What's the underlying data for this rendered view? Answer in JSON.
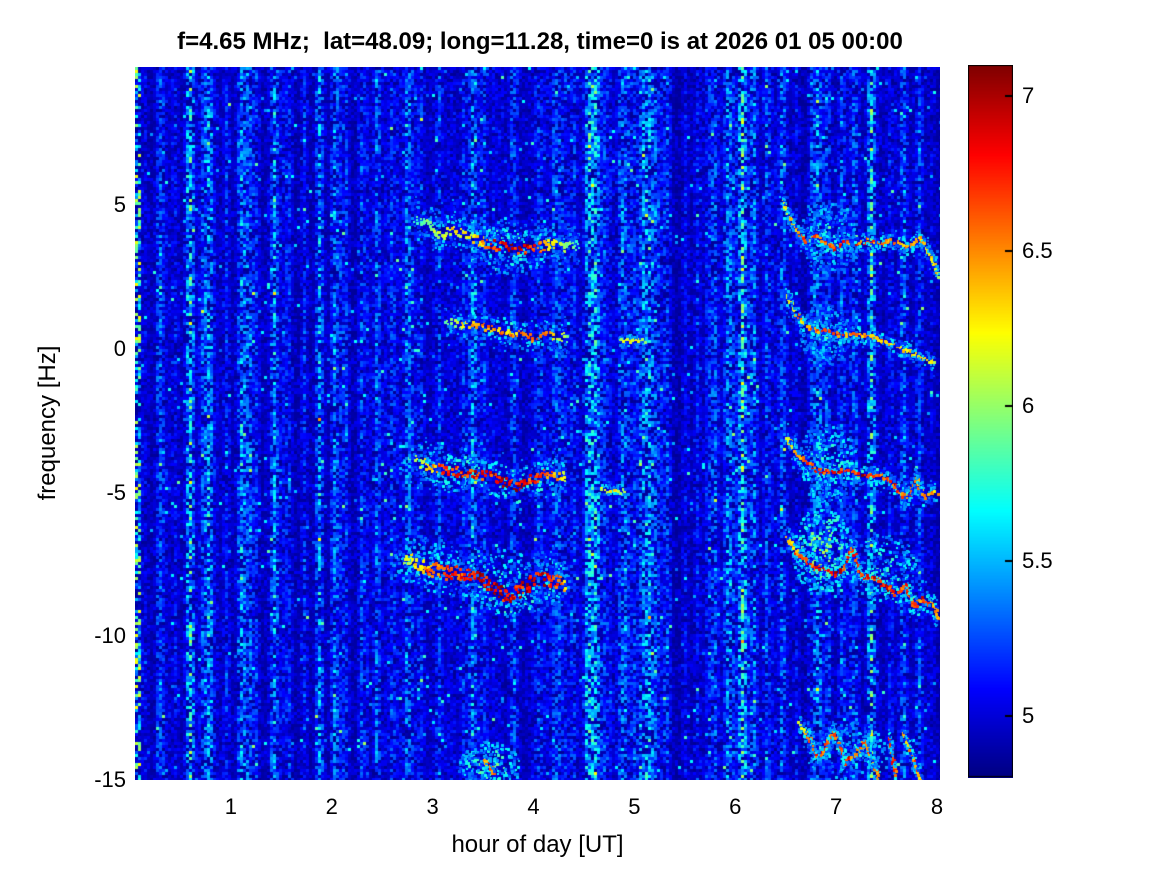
{
  "title": "f=4.65 MHz;  lat=48.09; long=11.28, time=0 is at 2026 01 05 00:00",
  "chart_data": {
    "type": "heatmap",
    "title": "f=4.65 MHz;  lat=48.09; long=11.28, time=0 is at 2026 01 05 00:00",
    "xlabel": "hour of day [UT]",
    "ylabel": "frequency [Hz]",
    "x_range": [
      0.05,
      8.03
    ],
    "y_range": [
      -15,
      9.8
    ],
    "x_ticks": [
      "1",
      "2",
      "3",
      "4",
      "5",
      "6",
      "7",
      "8"
    ],
    "x_tick_values": [
      1,
      2,
      3,
      4,
      5,
      6,
      7,
      8
    ],
    "y_ticks": [
      "5",
      "0",
      "-5",
      "-10",
      "-15"
    ],
    "y_tick_values": [
      5,
      0,
      -5,
      -10,
      -15
    ],
    "grid": false,
    "colormap": "jet",
    "legend_position": "none",
    "colorbar": {
      "position": "right",
      "min": 4.8,
      "max": 7.1,
      "ticks": [
        "7",
        "6.5",
        "6",
        "5.5",
        "5"
      ],
      "tick_values": [
        7,
        6.5,
        6,
        5.5,
        5
      ]
    },
    "background": {
      "base_level": 4.85,
      "noise_amp": 0.2,
      "speckle_prob": 0.015
    },
    "left_edge_column": {
      "x": 0.05,
      "level_min": 5.1,
      "level_max": 6.25,
      "density": 0.55
    },
    "vertical_streaks": {
      "major": [
        {
          "x": 0.3,
          "s": 0.35
        },
        {
          "x": 0.45,
          "s": 0.3
        },
        {
          "x": 0.6,
          "s": 0.4
        },
        {
          "x": 0.75,
          "s": 0.35
        },
        {
          "x": 0.95,
          "s": 0.4
        },
        {
          "x": 1.1,
          "s": 0.45
        },
        {
          "x": 1.25,
          "s": 0.4
        },
        {
          "x": 1.42,
          "s": 0.5
        },
        {
          "x": 1.58,
          "s": 0.35
        },
        {
          "x": 1.72,
          "s": 0.4
        },
        {
          "x": 1.85,
          "s": 0.35
        },
        {
          "x": 2.0,
          "s": 0.45
        },
        {
          "x": 2.12,
          "s": 0.4
        },
        {
          "x": 2.28,
          "s": 0.35
        },
        {
          "x": 2.42,
          "s": 0.5
        },
        {
          "x": 2.58,
          "s": 0.4
        },
        {
          "x": 2.72,
          "s": 0.45
        },
        {
          "x": 2.88,
          "s": 0.35
        },
        {
          "x": 3.05,
          "s": 0.3
        },
        {
          "x": 3.3,
          "s": 0.28
        },
        {
          "x": 3.5,
          "s": 0.22
        },
        {
          "x": 4.05,
          "s": 0.25
        },
        {
          "x": 4.3,
          "s": 0.3
        },
        {
          "x": 4.55,
          "s": 0.35
        },
        {
          "x": 4.7,
          "s": 0.4
        },
        {
          "x": 4.85,
          "s": 0.3
        },
        {
          "x": 5.0,
          "s": 0.35
        },
        {
          "x": 5.15,
          "s": 0.3
        },
        {
          "x": 5.3,
          "s": 0.28
        },
        {
          "x": 5.5,
          "s": 0.3
        },
        {
          "x": 5.62,
          "s": 0.35
        },
        {
          "x": 5.78,
          "s": 0.5
        },
        {
          "x": 5.9,
          "s": 0.45
        },
        {
          "x": 6.05,
          "s": 0.55
        },
        {
          "x": 6.18,
          "s": 0.4
        },
        {
          "x": 6.3,
          "s": 0.45
        },
        {
          "x": 6.45,
          "s": 0.5
        },
        {
          "x": 6.6,
          "s": 0.3
        },
        {
          "x": 6.75,
          "s": 0.35
        },
        {
          "x": 6.9,
          "s": 0.3
        },
        {
          "x": 7.05,
          "s": 0.4
        },
        {
          "x": 7.2,
          "s": 0.3
        },
        {
          "x": 7.35,
          "s": 0.28
        },
        {
          "x": 7.5,
          "s": 0.22
        },
        {
          "x": 7.65,
          "s": 0.28
        },
        {
          "x": 7.8,
          "s": 0.22
        }
      ],
      "minor_count": 130,
      "minor_strength": [
        0.08,
        0.3
      ]
    },
    "clouds": [
      {
        "cx": 6.9,
        "cy": 3.9,
        "rx": 0.28,
        "ry": 1.3,
        "n": 240,
        "v0": 5.15,
        "v1": 5.85
      },
      {
        "cx": 6.88,
        "cy": 0.5,
        "rx": 0.25,
        "ry": 1.1,
        "n": 190,
        "v0": 5.15,
        "v1": 5.8
      },
      {
        "cx": 6.9,
        "cy": -4.0,
        "rx": 0.3,
        "ry": 1.4,
        "n": 240,
        "v0": 5.2,
        "v1": 6.0
      },
      {
        "cx": 6.85,
        "cy": -7.0,
        "rx": 0.3,
        "ry": 1.5,
        "n": 280,
        "v0": 5.3,
        "v1": 6.25
      },
      {
        "cx": 7.45,
        "cy": -7.6,
        "rx": 0.35,
        "ry": 1.2,
        "n": 180,
        "v0": 5.2,
        "v1": 6.0
      },
      {
        "cx": 3.55,
        "cy": -14.5,
        "rx": 0.3,
        "ry": 0.9,
        "n": 170,
        "v0": 5.25,
        "v1": 6.1
      },
      {
        "cx": 7.1,
        "cy": -13.9,
        "rx": 0.45,
        "ry": 1.0,
        "n": 140,
        "v0": 5.2,
        "v1": 5.9
      },
      {
        "cx": 3.05,
        "cy": -4.1,
        "rx": 0.4,
        "ry": 0.9,
        "n": 110,
        "v0": 5.2,
        "v1": 5.9
      },
      {
        "cx": 2.92,
        "cy": -7.4,
        "rx": 0.35,
        "ry": 0.9,
        "n": 110,
        "v0": 5.2,
        "v1": 5.9
      },
      {
        "cx": 3.75,
        "cy": 3.6,
        "rx": 0.45,
        "ry": 1.0,
        "n": 150,
        "v0": 5.15,
        "v1": 5.8
      },
      {
        "cx": 3.8,
        "cy": -8.0,
        "rx": 0.55,
        "ry": 1.2,
        "n": 160,
        "v0": 5.2,
        "v1": 5.9
      }
    ],
    "doppler_traces": [
      {
        "name": "left-plus3.6Hz",
        "coreH": 5,
        "haloH": 13,
        "dense": 1.4,
        "points": [
          [
            2.82,
            4.55,
            0.25
          ],
          [
            2.95,
            4.35,
            0.3
          ],
          [
            3.05,
            4.0,
            0.45
          ],
          [
            3.2,
            4.15,
            0.5
          ],
          [
            3.32,
            3.95,
            0.55
          ],
          [
            3.45,
            3.75,
            0.6
          ],
          [
            3.55,
            3.65,
            0.85
          ],
          [
            3.65,
            3.55,
            0.95
          ],
          [
            3.8,
            3.45,
            1.0
          ],
          [
            3.95,
            3.4,
            0.95
          ],
          [
            4.05,
            3.5,
            0.8
          ],
          [
            4.15,
            3.6,
            0.6
          ],
          [
            4.28,
            3.5,
            0.4
          ],
          [
            4.45,
            3.55,
            0.22
          ]
        ]
      },
      {
        "name": "left-plus0.5Hz",
        "coreH": 4,
        "haloH": 10,
        "dense": 1.2,
        "points": [
          [
            3.12,
            0.9,
            0.3
          ],
          [
            3.25,
            0.8,
            0.5
          ],
          [
            3.4,
            0.75,
            0.7
          ],
          [
            3.5,
            0.7,
            0.75
          ],
          [
            3.62,
            0.6,
            0.7
          ],
          [
            3.75,
            0.55,
            0.6
          ],
          [
            3.88,
            0.5,
            0.75
          ],
          [
            4.0,
            0.35,
            0.8
          ],
          [
            4.12,
            0.5,
            0.7
          ],
          [
            4.25,
            0.45,
            0.5
          ],
          [
            4.35,
            0.4,
            0.3
          ]
        ]
      },
      {
        "name": "dash-plus0.3Hz",
        "coreH": 2,
        "haloH": 4,
        "dense": 1,
        "points": [
          [
            4.85,
            0.32,
            0.5
          ],
          [
            5.0,
            0.3,
            0.55
          ],
          [
            5.1,
            0.28,
            0.4
          ]
        ]
      },
      {
        "name": "left-minus4.4Hz",
        "coreH": 5,
        "haloH": 12,
        "dense": 1.5,
        "points": [
          [
            2.83,
            -3.85,
            0.45
          ],
          [
            2.95,
            -4.05,
            0.6
          ],
          [
            3.1,
            -4.15,
            0.8
          ],
          [
            3.25,
            -4.2,
            0.9
          ],
          [
            3.4,
            -4.3,
            0.95
          ],
          [
            3.55,
            -4.35,
            0.9
          ],
          [
            3.68,
            -4.55,
            1.0
          ],
          [
            3.82,
            -4.7,
            1.0
          ],
          [
            3.95,
            -4.5,
            0.9
          ],
          [
            4.08,
            -4.3,
            0.85
          ],
          [
            4.2,
            -4.35,
            0.7
          ],
          [
            4.32,
            -4.4,
            0.45
          ]
        ]
      },
      {
        "name": "dash-minus4.9Hz",
        "coreH": 2,
        "haloH": 4,
        "dense": 1,
        "points": [
          [
            4.65,
            -4.85,
            0.5
          ],
          [
            4.78,
            -4.9,
            0.6
          ],
          [
            4.9,
            -4.9,
            0.4
          ]
        ]
      },
      {
        "name": "left-minus7.9Hz",
        "coreH": 7,
        "haloH": 15,
        "dense": 2,
        "points": [
          [
            2.72,
            -7.15,
            0.5
          ],
          [
            2.85,
            -7.45,
            0.6
          ],
          [
            3.0,
            -7.55,
            0.75
          ],
          [
            3.15,
            -7.65,
            0.85
          ],
          [
            3.3,
            -7.7,
            0.9
          ],
          [
            3.45,
            -7.8,
            1.0
          ],
          [
            3.58,
            -8.15,
            1.0
          ],
          [
            3.72,
            -8.5,
            1.0
          ],
          [
            3.85,
            -8.35,
            1.0
          ],
          [
            3.98,
            -7.95,
            1.0
          ],
          [
            4.1,
            -7.95,
            0.95
          ],
          [
            4.22,
            -8.05,
            0.85
          ],
          [
            4.32,
            -8.15,
            0.6
          ]
        ]
      },
      {
        "name": "right-plus3.7Hz",
        "coreH": 2,
        "haloH": 6,
        "dense": 1,
        "points": [
          [
            6.45,
            5.25,
            0.5
          ],
          [
            6.52,
            4.7,
            0.6
          ],
          [
            6.6,
            4.15,
            0.7
          ],
          [
            6.68,
            3.8,
            0.8
          ],
          [
            6.78,
            4.0,
            0.8
          ],
          [
            6.88,
            3.75,
            0.85
          ],
          [
            6.98,
            3.55,
            0.9
          ],
          [
            7.08,
            3.8,
            0.85
          ],
          [
            7.18,
            3.65,
            0.8
          ],
          [
            7.3,
            3.85,
            0.8
          ],
          [
            7.42,
            3.7,
            0.75
          ],
          [
            7.52,
            3.85,
            0.7
          ],
          [
            7.62,
            3.75,
            0.75
          ],
          [
            7.72,
            3.6,
            0.7
          ],
          [
            7.82,
            3.95,
            0.7
          ],
          [
            7.9,
            3.5,
            0.6
          ],
          [
            7.97,
            3.0,
            0.55
          ],
          [
            8.0,
            2.55,
            0.5
          ]
        ]
      },
      {
        "name": "right-plus0.5Hz",
        "coreH": 2,
        "haloH": 6,
        "dense": 1,
        "points": [
          [
            6.5,
            1.9,
            0.5
          ],
          [
            6.58,
            1.35,
            0.6
          ],
          [
            6.68,
            0.9,
            0.7
          ],
          [
            6.8,
            0.65,
            0.8
          ],
          [
            6.92,
            0.7,
            0.8
          ],
          [
            7.05,
            0.5,
            0.8
          ],
          [
            7.18,
            0.55,
            0.75
          ],
          [
            7.32,
            0.5,
            0.7
          ],
          [
            7.45,
            0.3,
            0.7
          ],
          [
            7.6,
            0.1,
            0.65
          ],
          [
            7.75,
            -0.1,
            0.6
          ],
          [
            7.88,
            -0.3,
            0.55
          ],
          [
            7.98,
            -0.5,
            0.5
          ]
        ]
      },
      {
        "name": "right-minus4.4Hz",
        "coreH": 2.5,
        "haloH": 7,
        "dense": 1,
        "points": [
          [
            6.5,
            -3.05,
            0.5
          ],
          [
            6.58,
            -3.6,
            0.65
          ],
          [
            6.68,
            -3.95,
            0.8
          ],
          [
            6.8,
            -4.25,
            0.9
          ],
          [
            6.95,
            -4.35,
            0.9
          ],
          [
            7.1,
            -4.25,
            0.85
          ],
          [
            7.25,
            -4.45,
            0.9
          ],
          [
            7.4,
            -4.4,
            0.85
          ],
          [
            7.52,
            -4.55,
            0.85
          ],
          [
            7.62,
            -4.95,
            0.8
          ],
          [
            7.7,
            -5.25,
            0.75
          ],
          [
            7.78,
            -4.5,
            0.7
          ],
          [
            7.85,
            -5.15,
            0.75
          ],
          [
            7.95,
            -5.0,
            0.7
          ],
          [
            8.0,
            -4.95,
            0.6
          ]
        ]
      },
      {
        "name": "right-minus8Hz",
        "coreH": 3,
        "haloH": 8,
        "dense": 1.3,
        "points": [
          [
            6.5,
            -6.6,
            0.6
          ],
          [
            6.6,
            -7.1,
            0.7
          ],
          [
            6.72,
            -7.5,
            0.85
          ],
          [
            6.85,
            -7.7,
            0.95
          ],
          [
            6.98,
            -7.9,
            1.0
          ],
          [
            7.08,
            -7.55,
            0.9
          ],
          [
            7.15,
            -6.95,
            0.85
          ],
          [
            7.25,
            -7.9,
            0.95
          ],
          [
            7.38,
            -8.0,
            0.95
          ],
          [
            7.5,
            -8.3,
            0.9
          ],
          [
            7.6,
            -8.5,
            0.85
          ],
          [
            7.68,
            -8.2,
            0.85
          ],
          [
            7.75,
            -8.9,
            0.85
          ],
          [
            7.85,
            -8.6,
            0.8
          ],
          [
            7.95,
            -8.85,
            0.75
          ],
          [
            8.0,
            -9.3,
            0.6
          ]
        ]
      },
      {
        "name": "right-minus14Hz-a",
        "coreH": 2.5,
        "haloH": 6,
        "dense": 1,
        "points": [
          [
            6.62,
            -12.95,
            0.5
          ],
          [
            6.72,
            -13.5,
            0.7
          ],
          [
            6.8,
            -14.1,
            0.85
          ],
          [
            6.88,
            -13.9,
            0.8
          ],
          [
            6.95,
            -13.3,
            0.75
          ],
          [
            7.02,
            -13.6,
            0.8
          ],
          [
            7.08,
            -14.3,
            0.85
          ],
          [
            7.18,
            -14.05,
            0.8
          ],
          [
            7.28,
            -13.55,
            0.75
          ],
          [
            7.35,
            -14.3,
            0.8
          ],
          [
            7.42,
            -14.9,
            0.7
          ]
        ]
      },
      {
        "name": "right-minus14Hz-b",
        "coreH": 2.5,
        "haloH": 5,
        "dense": 1.2,
        "points": [
          [
            7.52,
            -13.45,
            0.8
          ],
          [
            7.55,
            -14.2,
            0.9
          ],
          [
            7.58,
            -14.8,
            0.8
          ]
        ]
      },
      {
        "name": "right-minus14Hz-c",
        "coreH": 2.5,
        "haloH": 6,
        "dense": 1,
        "points": [
          [
            7.65,
            -13.4,
            0.6
          ],
          [
            7.72,
            -13.9,
            0.7
          ],
          [
            7.78,
            -14.6,
            0.75
          ],
          [
            7.82,
            -15.0,
            0.6
          ]
        ]
      },
      {
        "name": "bottom-center-dot",
        "coreH": 2.5,
        "haloH": 5,
        "dense": 1,
        "points": [
          [
            3.5,
            -14.2,
            0.7
          ],
          [
            3.56,
            -14.5,
            0.8
          ],
          [
            3.6,
            -14.8,
            0.6
          ]
        ]
      }
    ],
    "seed": 11
  }
}
